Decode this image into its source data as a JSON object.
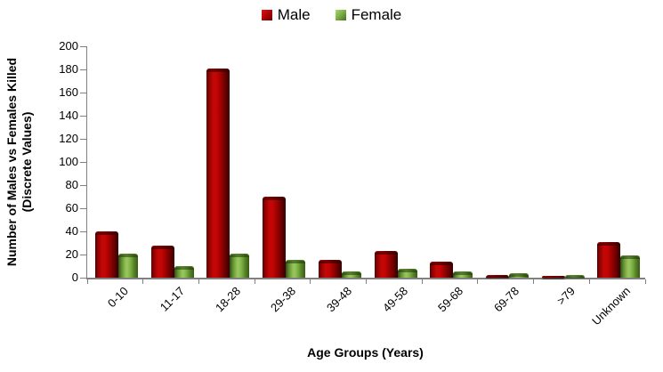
{
  "page": {
    "background": "#FFFFFF"
  },
  "colors": {
    "axis": "#808080",
    "text": "#000000",
    "male": "#C00505",
    "female": "#84B84C"
  },
  "chart_data": {
    "type": "bar",
    "title": "",
    "categories": [
      "0-10",
      "11-17",
      "18-28",
      "29-38",
      "39-48",
      "49-58",
      "59-68",
      "69-78",
      ">79",
      "Unknown"
    ],
    "series": [
      {
        "name": "Male",
        "color": "#C00505",
        "values": [
          40,
          28,
          181,
          70,
          15,
          23,
          14,
          2,
          1,
          31
        ]
      },
      {
        "name": "Female",
        "color": "#84B84C",
        "values": [
          21,
          10,
          21,
          15,
          5,
          8,
          5,
          4,
          2,
          19
        ]
      }
    ],
    "xlabel": "Age Groups (Years)",
    "ylabel_lines": [
      "Number of Males vs Females Killed",
      "(Discrete Values)"
    ],
    "ylabel": "Number of Males vs Females Killed (Discrete Values)",
    "ylim": [
      0,
      200
    ],
    "ytick_step": 20,
    "grid": false,
    "legend_position": "top-center",
    "bar_style": "3d-cylinder-gradient"
  }
}
